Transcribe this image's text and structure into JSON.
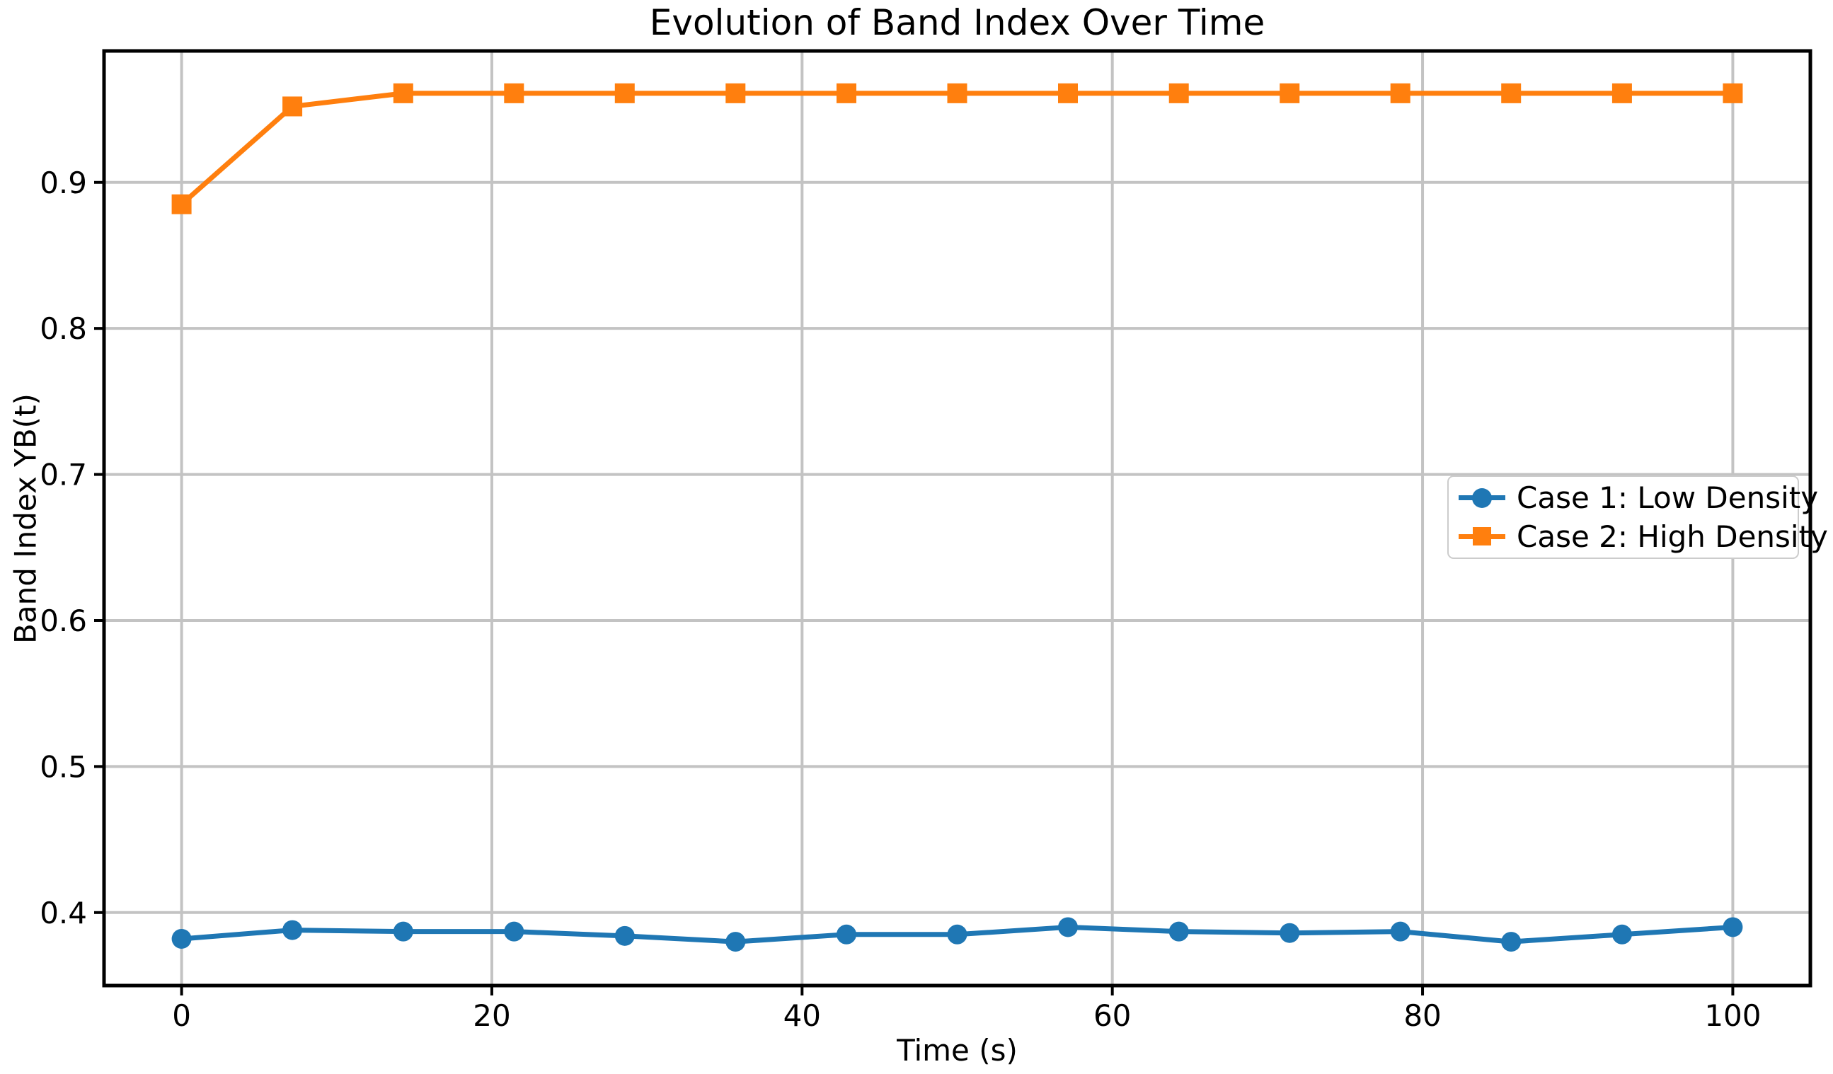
{
  "chart_data": {
    "type": "line",
    "title": "Evolution of Band Index Over Time",
    "xlabel": "Time (s)",
    "ylabel": "Band Index YB(t)",
    "x": [
      0,
      7.14,
      14.29,
      21.43,
      28.57,
      35.71,
      42.86,
      50,
      57.14,
      64.29,
      71.43,
      78.57,
      85.71,
      92.86,
      100
    ],
    "series": [
      {
        "name": "Case 1: Low Density",
        "color": "#1f77b4",
        "marker": "circle",
        "values": [
          0.382,
          0.388,
          0.387,
          0.387,
          0.384,
          0.38,
          0.385,
          0.385,
          0.39,
          0.387,
          0.386,
          0.387,
          0.38,
          0.385,
          0.39
        ]
      },
      {
        "name": "Case 2: High Density",
        "color": "#ff7f0e",
        "marker": "square",
        "values": [
          0.885,
          0.952,
          0.961,
          0.961,
          0.961,
          0.961,
          0.961,
          0.961,
          0.961,
          0.961,
          0.961,
          0.961,
          0.961,
          0.961,
          0.961
        ]
      }
    ],
    "x_ticks": [
      0,
      20,
      40,
      60,
      80,
      100
    ],
    "x_tick_labels": [
      "0",
      "20",
      "40",
      "60",
      "80",
      "100"
    ],
    "y_ticks": [
      0.4,
      0.5,
      0.6,
      0.7,
      0.8,
      0.9
    ],
    "y_tick_labels": [
      "0.4",
      "0.5",
      "0.6",
      "0.7",
      "0.8",
      "0.9"
    ],
    "xlim": [
      -5,
      105
    ],
    "ylim": [
      0.35,
      0.99
    ],
    "grid": true,
    "legend_position": "center right",
    "colors": {
      "grid": "#c3c3c3",
      "spine": "#000000",
      "background": "#ffffff",
      "legend_border": "#cccccc",
      "text": "#000000"
    }
  }
}
